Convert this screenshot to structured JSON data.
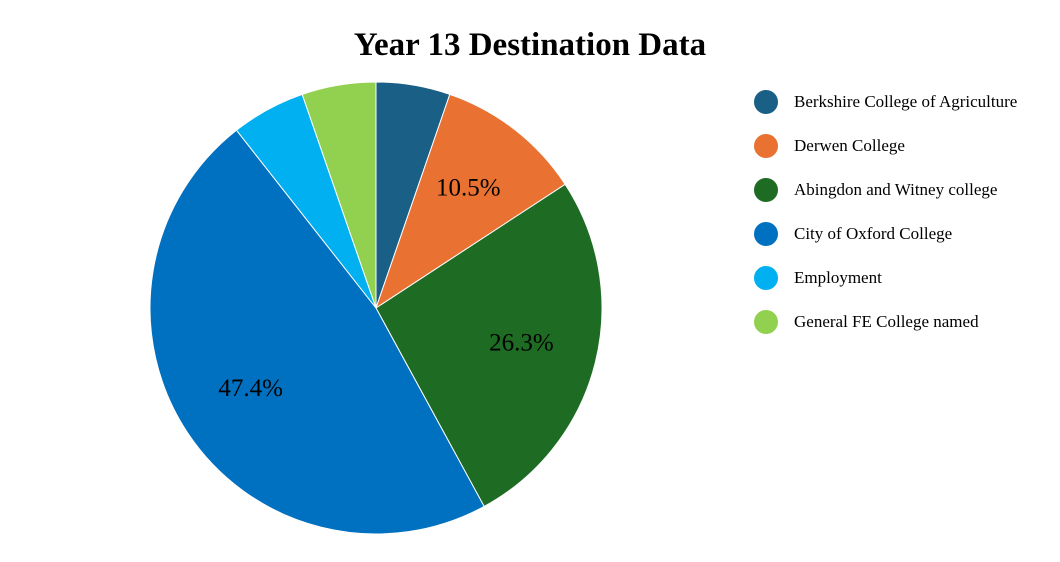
{
  "chart_data": {
    "type": "pie",
    "title": "Year 13 Destination Data",
    "legend_position": "right",
    "slices": [
      {
        "label": "Berkshire College of Agriculture",
        "value": 5.3,
        "color": "#1a5f85",
        "data_label": ""
      },
      {
        "label": "Derwen College",
        "value": 10.5,
        "color": "#e97132",
        "data_label": "10.5%"
      },
      {
        "label": "Abingdon and Witney college",
        "value": 26.3,
        "color": "#1e6b24",
        "data_label": "26.3%"
      },
      {
        "label": "City of Oxford College",
        "value": 47.4,
        "color": "#0070c0",
        "data_label": "47.4%"
      },
      {
        "label": "Employment",
        "value": 5.3,
        "color": "#00b0f0",
        "data_label": ""
      },
      {
        "label": "General FE College named",
        "value": 5.3,
        "color": "#92d050",
        "data_label": ""
      }
    ]
  }
}
